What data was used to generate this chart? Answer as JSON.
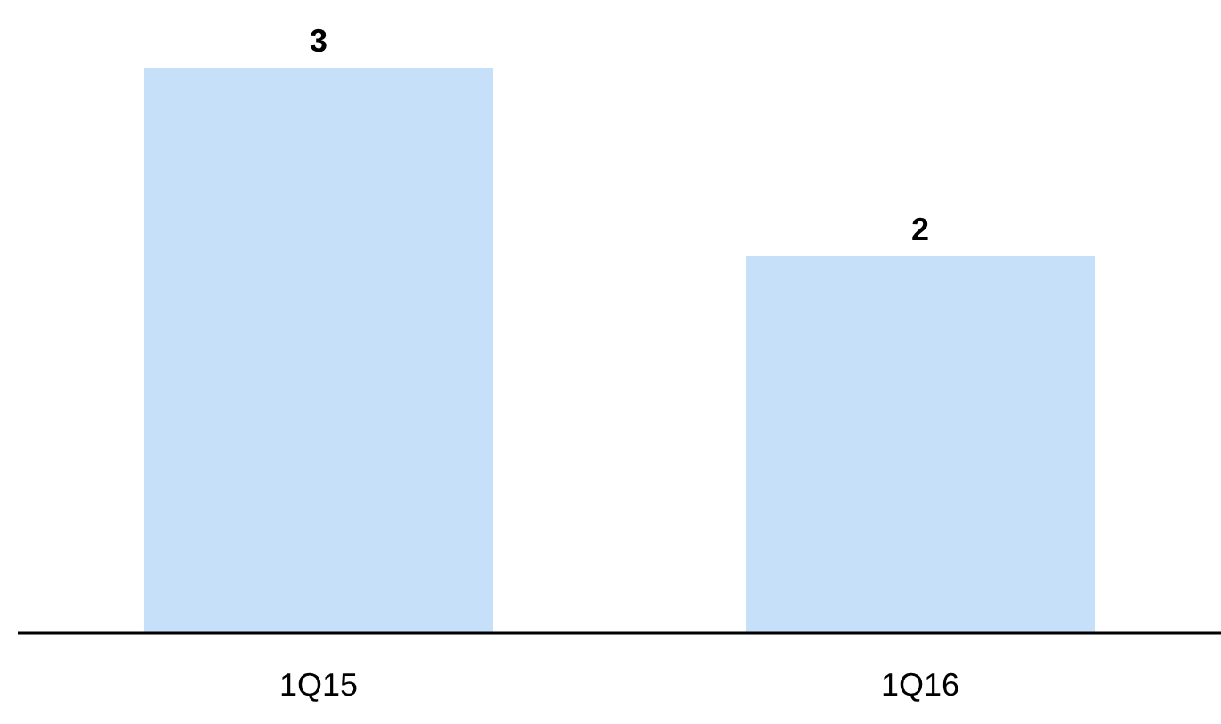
{
  "chart_data": {
    "type": "bar",
    "categories": [
      "1Q15",
      "1Q16"
    ],
    "values": [
      3,
      2
    ],
    "color": "#c6e0fa",
    "ylim": [
      0,
      3
    ],
    "data_labels": true,
    "tick_labels": "x"
  }
}
